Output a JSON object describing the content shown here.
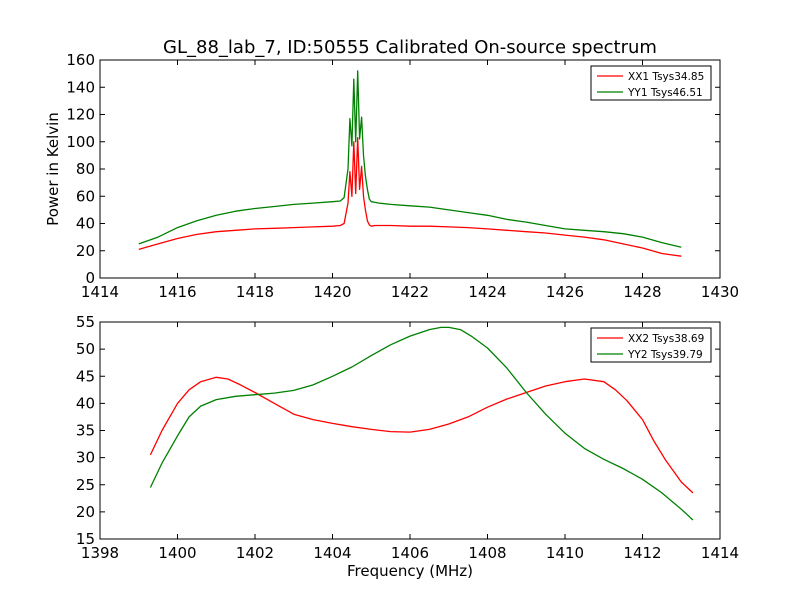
{
  "title": "GL_88_lab_7, ID:50555 Calibrated On-source spectrum",
  "chart_data": [
    {
      "type": "line",
      "xlabel": "",
      "ylabel": "Power in Kelvin",
      "xlim": [
        1414,
        1430
      ],
      "ylim": [
        0,
        160
      ],
      "xticks": [
        1414,
        1416,
        1418,
        1420,
        1422,
        1424,
        1426,
        1428,
        1430
      ],
      "yticks": [
        0,
        20,
        40,
        60,
        80,
        100,
        120,
        140,
        160
      ],
      "grid": false,
      "legend_position": "top-right",
      "series": [
        {
          "name": "XX1 Tsys34.85",
          "color": "#ff0000",
          "x": [
            1415.0,
            1415.5,
            1416.0,
            1416.5,
            1417.0,
            1417.5,
            1418.0,
            1418.5,
            1419.0,
            1419.5,
            1420.0,
            1420.2,
            1420.3,
            1420.4,
            1420.45,
            1420.5,
            1420.55,
            1420.6,
            1420.65,
            1420.7,
            1420.75,
            1420.8,
            1420.85,
            1420.9,
            1420.95,
            1421.0,
            1421.1,
            1421.2,
            1421.5,
            1422.0,
            1422.5,
            1423.0,
            1423.5,
            1424.0,
            1424.5,
            1425.0,
            1425.5,
            1426.0,
            1426.5,
            1427.0,
            1427.5,
            1428.0,
            1428.5,
            1429.0
          ],
          "y": [
            21,
            25,
            29,
            32,
            34,
            35,
            36,
            36.5,
            37,
            37.5,
            38,
            38.5,
            40,
            55,
            78,
            60,
            100,
            62,
            103,
            65,
            82,
            60,
            50,
            42,
            39,
            38,
            38.5,
            38.5,
            38.5,
            38,
            38,
            37.5,
            37,
            36,
            35,
            34,
            33,
            31.5,
            30,
            28,
            25,
            22,
            18,
            16
          ]
        },
        {
          "name": "YY1 Tsys46.51",
          "color": "#008000",
          "x": [
            1415.0,
            1415.5,
            1416.0,
            1416.5,
            1417.0,
            1417.5,
            1418.0,
            1418.5,
            1419.0,
            1419.5,
            1420.0,
            1420.2,
            1420.3,
            1420.4,
            1420.45,
            1420.5,
            1420.55,
            1420.6,
            1420.65,
            1420.7,
            1420.75,
            1420.8,
            1420.85,
            1420.9,
            1420.95,
            1421.0,
            1421.1,
            1421.2,
            1421.5,
            1422.0,
            1422.5,
            1423.0,
            1423.5,
            1424.0,
            1424.5,
            1425.0,
            1425.5,
            1426.0,
            1426.5,
            1427.0,
            1427.5,
            1428.0,
            1428.5,
            1429.0
          ],
          "y": [
            25,
            30,
            37,
            42,
            46,
            49,
            51,
            52.5,
            54,
            55,
            56,
            56.5,
            59,
            80,
            117,
            97,
            146,
            100,
            152,
            102,
            118,
            90,
            75,
            65,
            58,
            56,
            55.5,
            55,
            54,
            53,
            52,
            50,
            48,
            46,
            43,
            41,
            38.5,
            36,
            35,
            34,
            32.5,
            30,
            26,
            22.5
          ]
        }
      ]
    },
    {
      "type": "line",
      "xlabel": "Frequency (MHz)",
      "ylabel": "",
      "xlim": [
        1398,
        1414
      ],
      "ylim": [
        15,
        55
      ],
      "xticks": [
        1398,
        1400,
        1402,
        1404,
        1406,
        1408,
        1410,
        1412,
        1414
      ],
      "yticks": [
        15,
        20,
        25,
        30,
        35,
        40,
        45,
        50,
        55
      ],
      "grid": false,
      "legend_position": "top-right",
      "series": [
        {
          "name": "XX2 Tsys38.69",
          "color": "#ff0000",
          "x": [
            1399.3,
            1399.6,
            1400.0,
            1400.3,
            1400.6,
            1401.0,
            1401.3,
            1401.6,
            1402.0,
            1402.5,
            1403.0,
            1403.5,
            1404.0,
            1404.5,
            1405.0,
            1405.5,
            1406.0,
            1406.5,
            1407.0,
            1407.5,
            1408.0,
            1408.5,
            1409.0,
            1409.5,
            1410.0,
            1410.5,
            1411.0,
            1411.3,
            1411.6,
            1412.0,
            1412.3,
            1412.6,
            1413.0,
            1413.3
          ],
          "y": [
            30.5,
            35,
            40,
            42.5,
            44,
            44.8,
            44.5,
            43.5,
            42,
            40,
            38,
            37,
            36.3,
            35.7,
            35.2,
            34.8,
            34.7,
            35.2,
            36.2,
            37.5,
            39.3,
            40.8,
            42,
            43.2,
            44,
            44.5,
            44,
            42.5,
            40.5,
            37,
            33,
            29.5,
            25.5,
            23.5
          ]
        },
        {
          "name": "YY2 Tsys39.79",
          "color": "#008000",
          "x": [
            1399.3,
            1399.6,
            1400.0,
            1400.3,
            1400.6,
            1401.0,
            1401.5,
            1402.0,
            1402.5,
            1403.0,
            1403.5,
            1404.0,
            1404.5,
            1405.0,
            1405.5,
            1406.0,
            1406.5,
            1406.8,
            1407.0,
            1407.3,
            1407.6,
            1408.0,
            1408.5,
            1409.0,
            1409.5,
            1410.0,
            1410.5,
            1411.0,
            1411.5,
            1412.0,
            1412.5,
            1413.0,
            1413.3
          ],
          "y": [
            24.5,
            29,
            34,
            37.5,
            39.5,
            40.7,
            41.3,
            41.6,
            41.9,
            42.4,
            43.4,
            45,
            46.7,
            48.8,
            50.8,
            52.4,
            53.6,
            54,
            54,
            53.6,
            52.3,
            50.2,
            46.5,
            42,
            38,
            34.5,
            31.7,
            29.7,
            28,
            26,
            23.5,
            20.5,
            18.5
          ]
        }
      ]
    }
  ]
}
